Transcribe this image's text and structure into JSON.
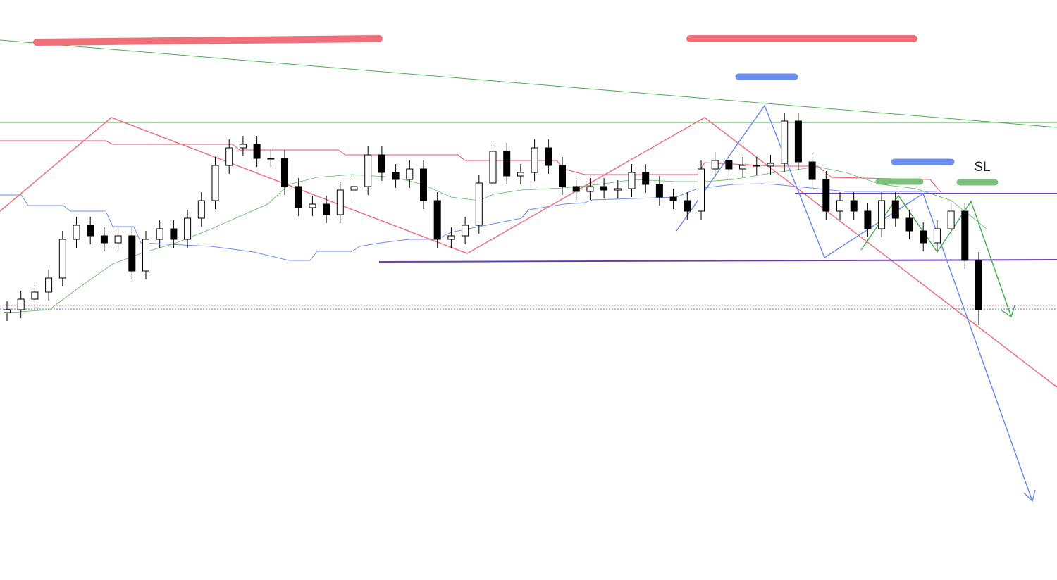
{
  "chart_data": {
    "type": "candlestick",
    "annotation": "SL",
    "ylim": [
      0,
      824
    ],
    "open": [
      380,
      384,
      399,
      409,
      429,
      484,
      504,
      489,
      479,
      489,
      439,
      484,
      499,
      484,
      514,
      539,
      589,
      614,
      619,
      599,
      599,
      559,
      529,
      534,
      519,
      554,
      559,
      604,
      579,
      569,
      584,
      539,
      484,
      489,
      504,
      564,
      609,
      574,
      579,
      614,
      589,
      559,
      552,
      559,
      554,
      556,
      579,
      562,
      544,
      539,
      524,
      584,
      596,
      584,
      589,
      588,
      592,
      652,
      594,
      569,
      524,
      539,
      524,
      499,
      539,
      514,
      496,
      479,
      499,
      524,
      454
    ],
    "high": [
      396,
      411,
      421,
      441,
      496,
      516,
      516,
      501,
      501,
      501,
      496,
      511,
      511,
      526,
      551,
      601,
      626,
      631,
      631,
      611,
      611,
      571,
      546,
      546,
      566,
      571,
      616,
      616,
      591,
      596,
      596,
      551,
      501,
      516,
      576,
      621,
      621,
      591,
      626,
      626,
      601,
      571,
      571,
      571,
      568,
      591,
      591,
      574,
      556,
      551,
      596,
      608,
      608,
      601,
      601,
      604,
      664,
      664,
      606,
      581,
      551,
      551,
      536,
      551,
      551,
      526,
      508,
      511,
      536,
      536,
      466
    ],
    "low": [
      368,
      372,
      387,
      397,
      417,
      472,
      477,
      467,
      467,
      427,
      427,
      472,
      472,
      472,
      502,
      527,
      577,
      602,
      587,
      587,
      547,
      517,
      517,
      507,
      507,
      542,
      547,
      567,
      557,
      557,
      527,
      472,
      472,
      477,
      492,
      552,
      562,
      562,
      567,
      577,
      547,
      540,
      540,
      542,
      542,
      544,
      550,
      532,
      527,
      512,
      512,
      572,
      572,
      572,
      576,
      576,
      580,
      582,
      557,
      512,
      512,
      512,
      487,
      487,
      502,
      484,
      467,
      467,
      487,
      442,
      362
    ],
    "close": [
      384,
      399,
      409,
      429,
      484,
      504,
      489,
      479,
      489,
      439,
      484,
      499,
      484,
      514,
      539,
      589,
      614,
      619,
      599,
      599,
      559,
      529,
      534,
      519,
      554,
      559,
      604,
      579,
      569,
      584,
      539,
      484,
      489,
      504,
      564,
      609,
      574,
      579,
      614,
      589,
      559,
      552,
      559,
      554,
      556,
      579,
      562,
      544,
      539,
      524,
      584,
      596,
      584,
      589,
      588,
      592,
      652,
      594,
      569,
      524,
      539,
      524,
      499,
      539,
      514,
      496,
      479,
      499,
      524,
      454,
      384
    ]
  }
}
